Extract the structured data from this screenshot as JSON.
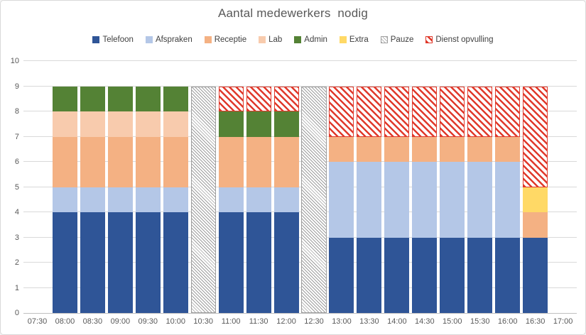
{
  "title": "Aantal medewerkers  nodig",
  "colors": {
    "background": "#ffffff",
    "frame_border": "#d9d9d9",
    "gridline": "#d9d9d9",
    "axis_line": "#bfbfbf",
    "tick_text": "#595959",
    "title_text": "#595959",
    "legend_text": "#404040",
    "hatch_background": "#ffffff"
  },
  "chart_data": {
    "type": "bar",
    "stacked": true,
    "title": "Aantal medewerkers  nodig",
    "xlabel": "",
    "ylabel": "",
    "ylim": [
      0,
      10
    ],
    "y_tick_step": 1,
    "grid": true,
    "legend_position": "top",
    "categories": [
      "07:30",
      "08:00",
      "08:30",
      "09:00",
      "09:30",
      "10:00",
      "10:30",
      "11:00",
      "11:30",
      "12:00",
      "12:30",
      "13:00",
      "13:30",
      "14:00",
      "14:30",
      "15:00",
      "15:30",
      "16:00",
      "16:30",
      "17:00"
    ],
    "series": [
      {
        "name": "Telefoon",
        "color": "#2f5597",
        "fill": "solid",
        "values": [
          0,
          4,
          4,
          4,
          4,
          4,
          0,
          4,
          4,
          4,
          0,
          3,
          3,
          3,
          3,
          3,
          3,
          3,
          3,
          0
        ]
      },
      {
        "name": "Afspraken",
        "color": "#b4c7e7",
        "fill": "solid",
        "values": [
          0,
          1,
          1,
          1,
          1,
          1,
          0,
          1,
          1,
          1,
          0,
          3,
          3,
          3,
          3,
          3,
          3,
          3,
          0,
          0
        ]
      },
      {
        "name": "Receptie",
        "color": "#f4b183",
        "fill": "solid",
        "values": [
          0,
          2,
          2,
          2,
          2,
          2,
          0,
          2,
          2,
          2,
          0,
          1,
          1,
          1,
          1,
          1,
          1,
          1,
          1,
          0
        ]
      },
      {
        "name": "Lab",
        "color": "#f8cbad",
        "fill": "solid",
        "values": [
          0,
          1,
          1,
          1,
          1,
          1,
          0,
          0,
          0,
          0,
          0,
          0,
          0,
          0,
          0,
          0,
          0,
          0,
          0,
          0
        ]
      },
      {
        "name": "Admin",
        "color": "#548235",
        "fill": "solid",
        "values": [
          0,
          1,
          1,
          1,
          1,
          1,
          0,
          1,
          1,
          1,
          0,
          0,
          0,
          0,
          0,
          0,
          0,
          0,
          0,
          0
        ]
      },
      {
        "name": "Extra",
        "color": "#ffd966",
        "fill": "solid",
        "values": [
          0,
          0,
          0,
          0,
          0,
          0,
          0,
          0,
          0,
          0,
          0,
          0,
          0,
          0,
          0,
          0,
          0,
          0,
          1,
          0
        ]
      },
      {
        "name": "Pauze",
        "color": "#9e9e9e",
        "fill": "hatch",
        "hatch_stroke": 1,
        "hatch_gap": 2.2,
        "values": [
          0,
          0,
          0,
          0,
          0,
          0,
          9,
          0,
          0,
          0,
          9,
          0,
          0,
          0,
          0,
          0,
          0,
          0,
          0,
          0
        ]
      },
      {
        "name": "Dienst opvulling",
        "color": "#e0392b",
        "fill": "hatch",
        "hatch_stroke": 2.5,
        "hatch_gap": 4,
        "values": [
          0,
          0,
          0,
          0,
          0,
          0,
          0,
          1,
          1,
          1,
          0,
          2,
          2,
          2,
          2,
          2,
          2,
          2,
          4,
          0
        ]
      }
    ]
  }
}
